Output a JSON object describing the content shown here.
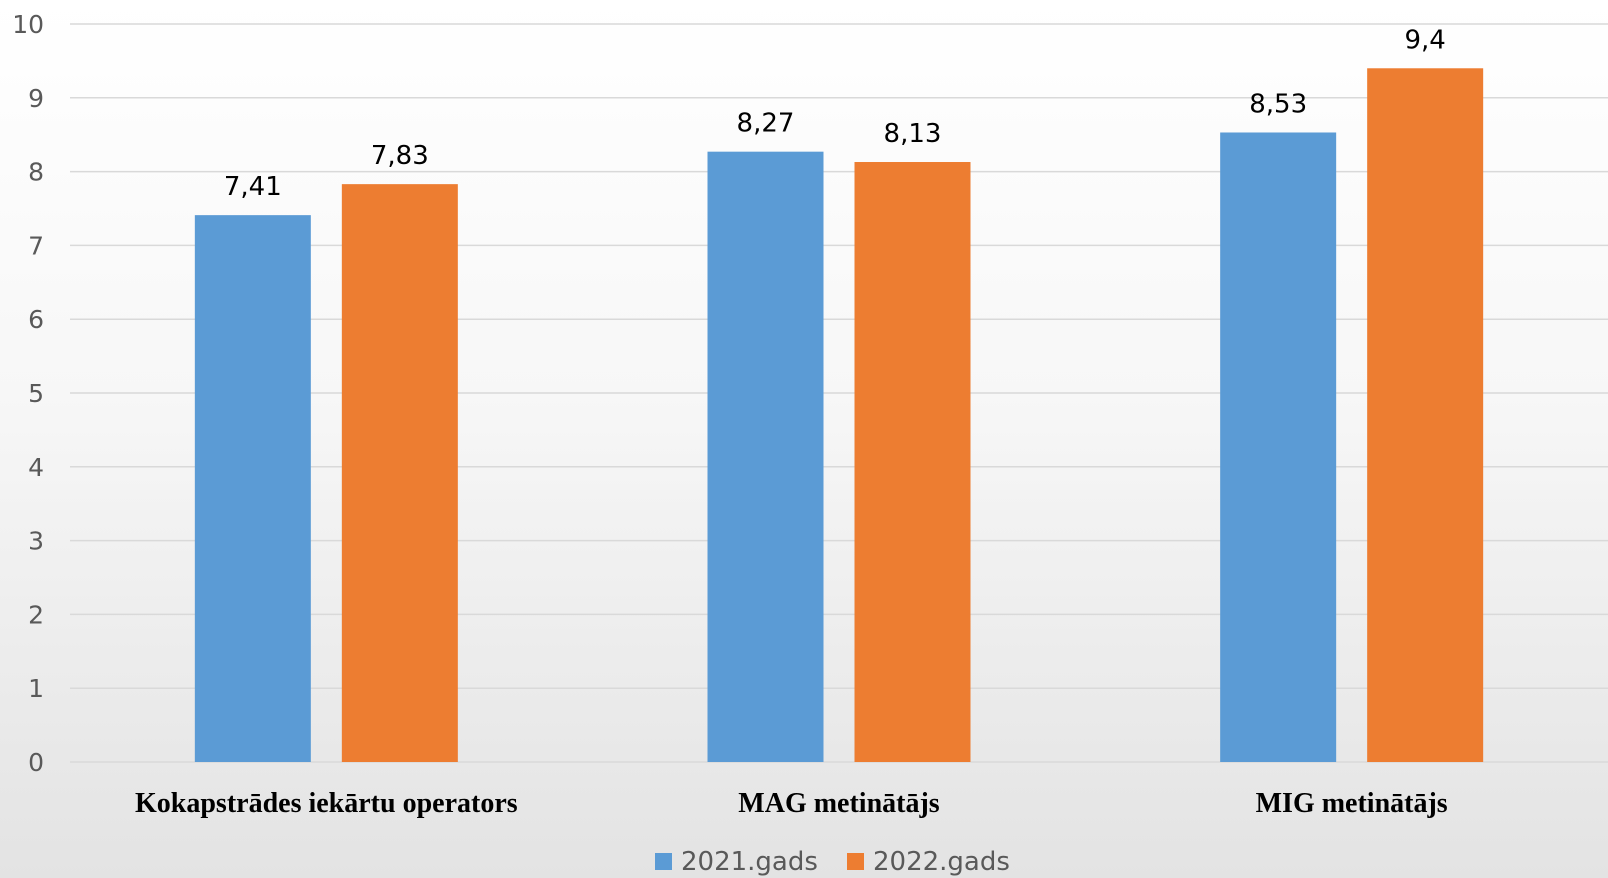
{
  "chart_data": {
    "type": "bar",
    "categories": [
      "Kokapstrādes iekārtu operators",
      "MAG metinātājs",
      "MIG metinātājs"
    ],
    "series": [
      {
        "name": "2021.gads",
        "color": "#5B9BD5",
        "values": [
          7.41,
          8.27,
          8.53
        ],
        "labels": [
          "7,41",
          "8,27",
          "8,53"
        ]
      },
      {
        "name": "2022.gads",
        "color": "#ED7D31",
        "values": [
          7.83,
          8.13,
          9.4
        ],
        "labels": [
          "7,83",
          "8,13",
          "9,4"
        ]
      }
    ],
    "ylim": [
      0,
      10
    ],
    "yticks": [
      0,
      1,
      2,
      3,
      4,
      5,
      6,
      7,
      8,
      9,
      10
    ],
    "grid": true,
    "legend_position": "bottom"
  }
}
